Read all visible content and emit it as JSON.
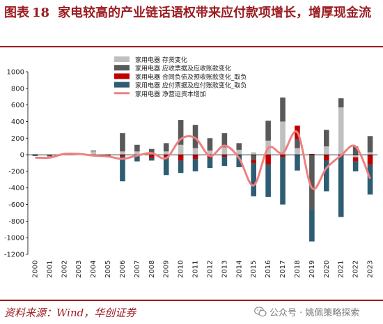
{
  "figure": {
    "label": "图表",
    "number": "18",
    "title": "家电较高的产业链话语权带来应付款项增长，增厚现金流"
  },
  "source": "资料来源：Wind，华创证券",
  "watermark": {
    "icon": "wechat-icon",
    "text": "公众号 · 姚佩策略探索"
  },
  "colors": {
    "title": "#9b1c21",
    "inventory": "#bfbfbf",
    "receivables": "#595959",
    "contract": "#c00000",
    "payables": "#2e5c72",
    "working_capital": "#f08080"
  },
  "chart_data": {
    "type": "bar",
    "stacked": true,
    "categories": [
      "2000",
      "2001",
      "2002",
      "2003",
      "2004",
      "2005",
      "2006",
      "2007",
      "2008",
      "2009",
      "2010",
      "2011",
      "2012",
      "2013",
      "2014",
      "2015",
      "2016",
      "2017",
      "2018",
      "2019",
      "2020",
      "2021",
      "2022",
      "2023"
    ],
    "ylim": [
      -1200,
      1000
    ],
    "yticks": [
      -1200,
      -1000,
      -800,
      -600,
      -400,
      -200,
      0,
      200,
      400,
      600,
      800,
      1000
    ],
    "legend_position": "top-center",
    "grid": false,
    "series": [
      {
        "name": "家用电器 存货变化",
        "type": "bar",
        "values": [
          10,
          0,
          0,
          0,
          40,
          5,
          40,
          40,
          10,
          40,
          120,
          80,
          50,
          90,
          60,
          30,
          170,
          400,
          80,
          -5,
          100,
          570,
          -30,
          30
        ]
      },
      {
        "name": "家用电器 应收票据及应收账款变化",
        "type": "bar",
        "values": [
          0,
          0,
          0,
          0,
          10,
          0,
          220,
          80,
          60,
          100,
          300,
          280,
          150,
          170,
          80,
          -60,
          240,
          290,
          110,
          -650,
          200,
          110,
          100,
          195
        ]
      },
      {
        "name": "家用电器 合同负债及预收账款变化_取负",
        "type": "bar",
        "values": [
          -5,
          -10,
          -5,
          0,
          -10,
          -10,
          -20,
          -10,
          -40,
          -45,
          -70,
          -50,
          -40,
          -25,
          0,
          -40,
          -120,
          -30,
          160,
          10,
          -70,
          -20,
          -50,
          -120
        ]
      },
      {
        "name": "家用电器 应付票据及应付账款变化_取负",
        "type": "bar",
        "values": [
          -10,
          -10,
          0,
          0,
          -5,
          -20,
          -300,
          -70,
          -30,
          -200,
          -150,
          -150,
          -120,
          -110,
          -150,
          -400,
          -390,
          -570,
          -190,
          -390,
          -370,
          -730,
          -120,
          -360
        ]
      },
      {
        "name": "家用电器 净营运资本增加",
        "type": "line",
        "values": [
          -35,
          -35,
          10,
          10,
          -10,
          -20,
          -50,
          -10,
          20,
          -40,
          190,
          200,
          -15,
          110,
          -40,
          -370,
          80,
          20,
          270,
          -400,
          -160,
          -10,
          100,
          -290
        ]
      }
    ]
  }
}
